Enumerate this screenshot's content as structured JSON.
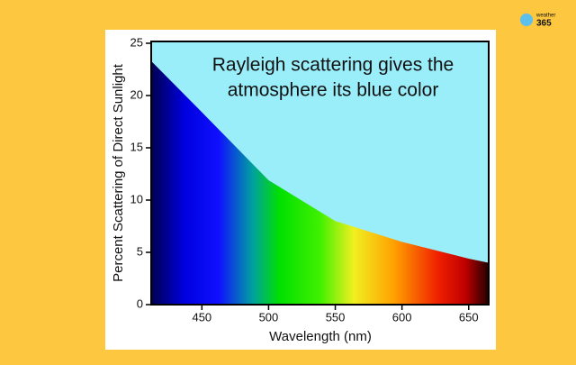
{
  "chart_data": {
    "type": "area",
    "annotation": [
      "Rayleigh scattering gives the",
      "atmosphere its blue color"
    ],
    "x_label": "Wavelength (nm)",
    "y_label": "Percent Scattering of Direct Sunlight",
    "x": [
      412,
      450,
      500,
      550,
      600,
      650,
      665
    ],
    "values": [
      23.3,
      18.4,
      11.9,
      8.0,
      6.0,
      4.4,
      4.0
    ],
    "xlim": [
      412,
      665
    ],
    "xticks": [
      450,
      500,
      550,
      600,
      650
    ],
    "ylim": [
      0,
      25
    ],
    "yticks": [
      0,
      5,
      10,
      15,
      20,
      25
    ],
    "logo": [
      "weather",
      "365"
    ]
  }
}
